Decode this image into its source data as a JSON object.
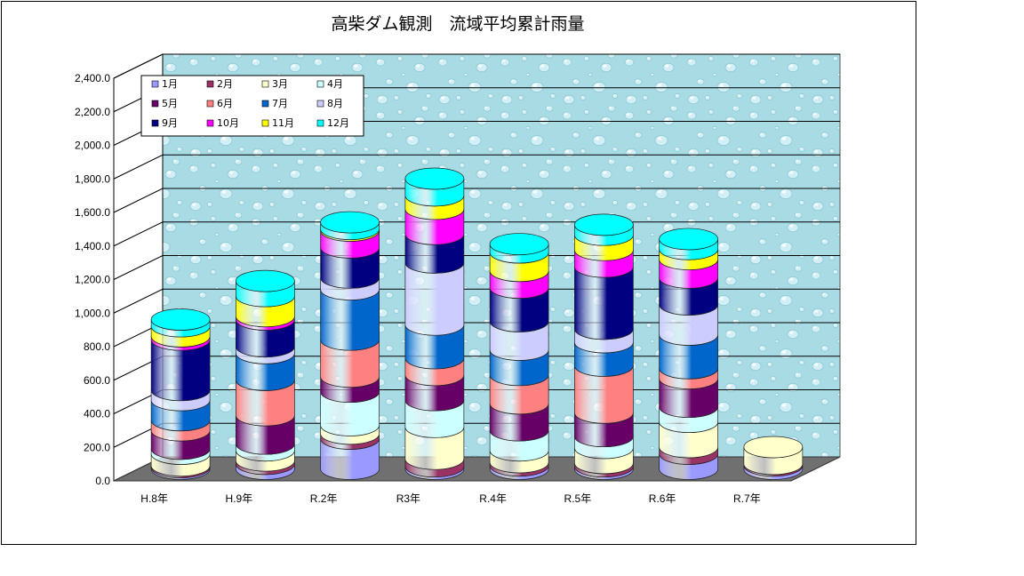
{
  "title": "高柴ダム観測　流域平均累計雨量",
  "colors": {
    "wall": "#a8dbe4",
    "floor": "#707070",
    "gridline": "#000000"
  },
  "chart_data": {
    "type": "bar",
    "subtype": "stacked-cylinder-3d",
    "title": "高柴ダム観測　流域平均累計雨量",
    "xlabel": "",
    "ylabel": "",
    "ylim": [
      0,
      2400
    ],
    "yticks": [
      "0.0",
      "200.0",
      "400.0",
      "600.0",
      "800.0",
      "1,000.0",
      "1,200.0",
      "1,400.0",
      "1,600.0",
      "1,800.0",
      "2,000.0",
      "2,200.0",
      "2,400.0"
    ],
    "grid": true,
    "legend_position": "top-left",
    "categories": [
      "H.8年",
      "H.9年",
      "R.2年",
      "R3年",
      "R.4年",
      "R.5年",
      "R.6年",
      "R.7年"
    ],
    "series": [
      {
        "name": "1月",
        "color": "#9999ff",
        "values": [
          10,
          30,
          180,
          15,
          20,
          15,
          90,
          20
        ]
      },
      {
        "name": "2月",
        "color": "#993366",
        "values": [
          10,
          20,
          30,
          45,
          20,
          20,
          40,
          10
        ]
      },
      {
        "name": "3月",
        "color": "#ffffcc",
        "values": [
          70,
          60,
          50,
          190,
          70,
          90,
          150,
          100
        ]
      },
      {
        "name": "4月",
        "color": "#ccffff",
        "values": [
          30,
          40,
          200,
          160,
          120,
          70,
          90,
          0
        ]
      },
      {
        "name": "5月",
        "color": "#660066",
        "values": [
          110,
          170,
          90,
          150,
          160,
          140,
          170,
          0
        ]
      },
      {
        "name": "6月",
        "color": "#ff8080",
        "values": [
          60,
          210,
          220,
          100,
          170,
          280,
          60,
          0
        ]
      },
      {
        "name": "7月",
        "color": "#0066cc",
        "values": [
          120,
          160,
          300,
          200,
          150,
          140,
          200,
          0
        ]
      },
      {
        "name": "8月",
        "color": "#ccccff",
        "values": [
          60,
          40,
          70,
          370,
          170,
          80,
          180,
          0
        ]
      },
      {
        "name": "9月",
        "color": "#000080",
        "values": [
          300,
          160,
          180,
          170,
          200,
          370,
          160,
          0
        ]
      },
      {
        "name": "10月",
        "color": "#ff00ff",
        "values": [
          20,
          20,
          100,
          150,
          100,
          100,
          110,
          0
        ]
      },
      {
        "name": "11月",
        "color": "#ffff00",
        "values": [
          60,
          120,
          10,
          80,
          110,
          90,
          60,
          0
        ]
      },
      {
        "name": "12月",
        "color": "#00ffff",
        "values": [
          40,
          90,
          40,
          100,
          50,
          60,
          60,
          0
        ]
      }
    ]
  }
}
